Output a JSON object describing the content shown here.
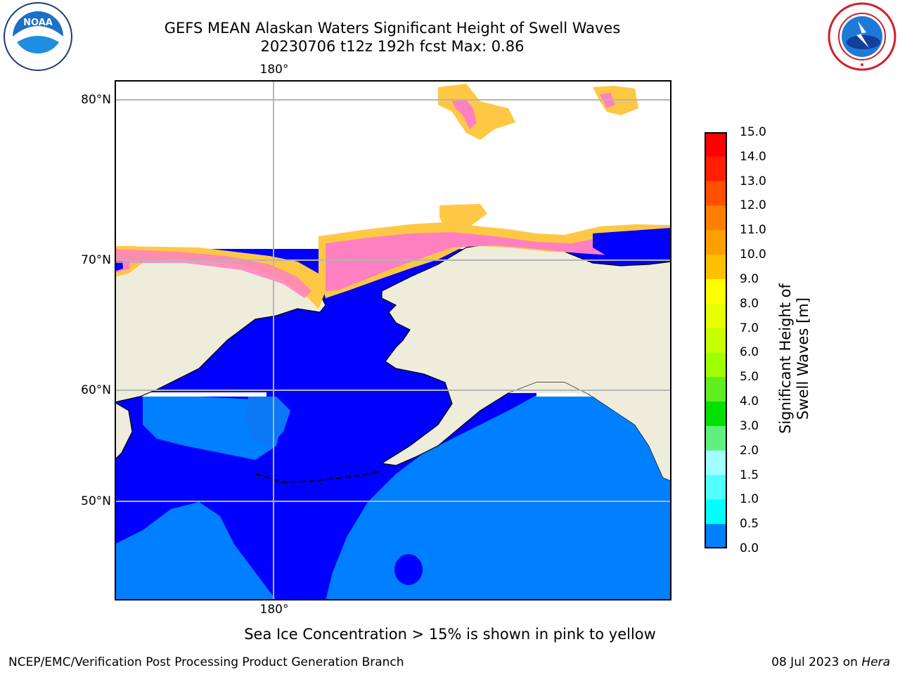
{
  "header": {
    "title_line1": "GEFS MEAN Alaskan Waters Significant Height of Swell Waves",
    "title_line2": "20230706 t12z 192h fcst   Max: 0.86"
  },
  "logos": {
    "left": "noaa-logo",
    "left_text": "NOAA",
    "right": "national-weather-service-logo"
  },
  "map": {
    "lat_labels": [
      "80°N",
      "70°N",
      "60°N",
      "50°N"
    ],
    "lon_label_top": "180°",
    "lon_label_bottom": "180°",
    "colors": {
      "ocean_deep": "#0000ff",
      "ocean_mid": "#0080ff",
      "land": "#eeeddc",
      "ice_pink": "#ff80c0",
      "ice_yellow": "#ffc844"
    }
  },
  "colorbar": {
    "title": "Significant Height of Swell Waves [m]",
    "ticks": [
      "15.0",
      "14.0",
      "13.0",
      "12.0",
      "11.0",
      "10.0",
      "9.0",
      "8.0",
      "7.0",
      "6.0",
      "5.0",
      "4.0",
      "3.0",
      "2.0",
      "1.5",
      "1.0",
      "0.5",
      "0.0"
    ],
    "colors": [
      "#ff0000",
      "#ff2000",
      "#ff5000",
      "#ff8000",
      "#ffa000",
      "#ffc000",
      "#ffff00",
      "#e8ff00",
      "#c8ff00",
      "#a0ff00",
      "#60ee20",
      "#00e000",
      "#60f080",
      "#a0ffff",
      "#50ffff",
      "#00ffff",
      "#0080ff",
      "#0000ff"
    ]
  },
  "note": "Sea Ice Concentration > 15% is shown in pink to yellow",
  "footer": {
    "left": "NCEP/EMC/Verification Post Processing Product Generation Branch",
    "right_date": "08 Jul 2023 on ",
    "right_host": "Hera"
  }
}
